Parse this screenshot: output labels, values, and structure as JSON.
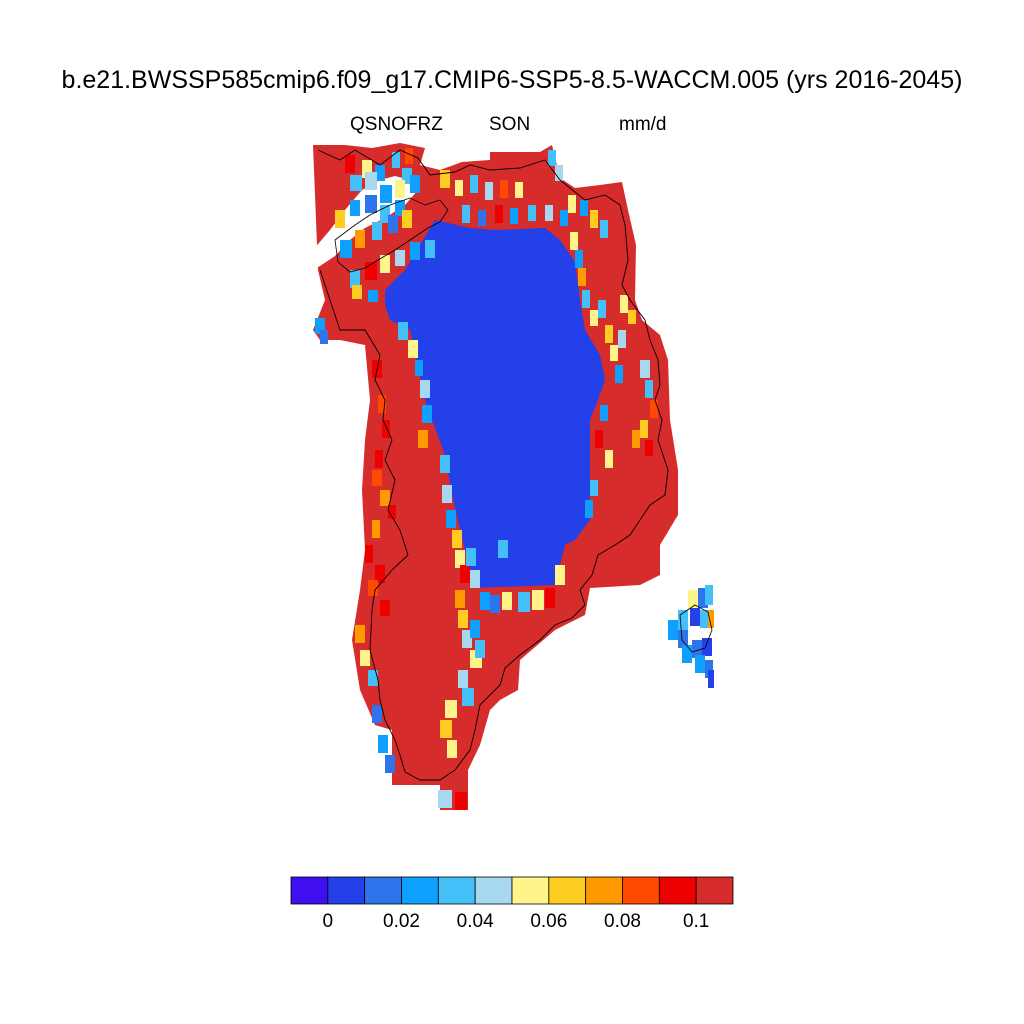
{
  "title": "b.e21.BWSSP585cmip6.f09_g17.CMIP6-SSP5-8.5-WACCM.005 (yrs 2016-2045)",
  "variable": "QSNOFRZ",
  "season": "SON",
  "units": "mm/d",
  "colorbar": {
    "colors": [
      "#3f0ff0",
      "#2440e8",
      "#2e74ea",
      "#0fa0ff",
      "#43c0f8",
      "#a8d8f0",
      "#fff48a",
      "#ffcc22",
      "#ff9900",
      "#ff4a00",
      "#ee0000",
      "#d62c2c"
    ],
    "tick_labels": [
      "0",
      "0.02",
      "0.04",
      "0.06",
      "0.08",
      "0.1"
    ]
  },
  "palette": {
    "ice_interior": "#2440e8",
    "high_melt": "#d62c2c",
    "coastline": "#000000"
  }
}
